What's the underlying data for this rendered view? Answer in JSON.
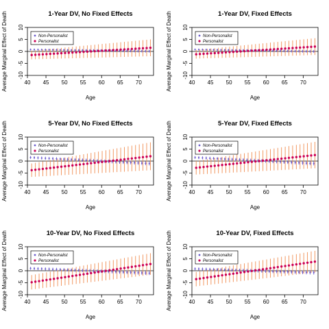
{
  "colors": {
    "non_personalist": "#6a5acd",
    "personalist": "#cc0055",
    "personalist_ci": "#f08c50",
    "zero_line": "#000000"
  },
  "chart_data": [
    {
      "type": "scatter",
      "title": "1-Year DV, No Fixed Effects",
      "xlabel": "Age",
      "ylabel": "Average Marginal Effect of Death",
      "xlim": [
        40,
        74
      ],
      "ylim": [
        -10,
        10
      ],
      "xticks": [
        40,
        45,
        50,
        55,
        60,
        65,
        70
      ],
      "yticks": [
        -10,
        -5,
        0,
        5,
        10
      ],
      "legend": "top-left",
      "x_start": 41,
      "x_end": 73,
      "series": [
        {
          "name": "Non-Personalist",
          "start": 0.8,
          "end": 0.1,
          "ci_start": 0.4,
          "ci_end": 0.6
        },
        {
          "name": "Personalist",
          "start": -1.5,
          "end": 1.5,
          "ci_start": 1.8,
          "ci_end": 3.5
        }
      ]
    },
    {
      "type": "scatter",
      "title": "1-Year DV, Fixed Effects",
      "xlabel": "Age",
      "ylabel": "Average Marginal Effect of Death",
      "xlim": [
        40,
        74
      ],
      "ylim": [
        -10,
        10
      ],
      "xticks": [
        40,
        45,
        50,
        55,
        60,
        65,
        70
      ],
      "yticks": [
        -10,
        -5,
        0,
        5,
        10
      ],
      "legend": "top-left",
      "x_start": 41,
      "x_end": 73,
      "series": [
        {
          "name": "Non-Personalist",
          "start": 0.8,
          "end": 0.0,
          "ci_start": 0.4,
          "ci_end": 0.6
        },
        {
          "name": "Personalist",
          "start": -1.2,
          "end": 2.0,
          "ci_start": 1.8,
          "ci_end": 3.5
        }
      ]
    },
    {
      "type": "scatter",
      "title": "5-Year DV, No Fixed Effects",
      "xlabel": "Age",
      "ylabel": "Average Marginal Effect of Death",
      "xlim": [
        40,
        74
      ],
      "ylim": [
        -10,
        10
      ],
      "xticks": [
        40,
        45,
        50,
        55,
        60,
        65,
        70
      ],
      "yticks": [
        -10,
        -5,
        0,
        5,
        10
      ],
      "legend": "top-left",
      "x_start": 41,
      "x_end": 73,
      "series": [
        {
          "name": "Non-Personalist",
          "start": 1.5,
          "end": -1.0,
          "ci_start": 0.6,
          "ci_end": 0.8
        },
        {
          "name": "Personalist",
          "start": -3.8,
          "end": 2.0,
          "ci_start": 2.8,
          "ci_end": 5.8
        }
      ]
    },
    {
      "type": "scatter",
      "title": "5-Year DV, Fixed Effects",
      "xlabel": "Age",
      "ylabel": "Average Marginal Effect of Death",
      "xlim": [
        40,
        74
      ],
      "ylim": [
        -10,
        10
      ],
      "xticks": [
        40,
        45,
        50,
        55,
        60,
        65,
        70
      ],
      "yticks": [
        -10,
        -5,
        0,
        5,
        10
      ],
      "legend": "top-left",
      "x_start": 41,
      "x_end": 73,
      "series": [
        {
          "name": "Non-Personalist",
          "start": 1.5,
          "end": -1.0,
          "ci_start": 0.6,
          "ci_end": 0.8
        },
        {
          "name": "Personalist",
          "start": -2.8,
          "end": 2.5,
          "ci_start": 2.8,
          "ci_end": 5.5
        }
      ]
    },
    {
      "type": "scatter",
      "title": "10-Year DV, No Fixed Effects",
      "xlabel": "Age",
      "ylabel": "Average Marginal Effect of Death",
      "xlim": [
        40,
        74
      ],
      "ylim": [
        -10,
        10
      ],
      "xticks": [
        40,
        45,
        50,
        55,
        60,
        65,
        70
      ],
      "yticks": [
        -10,
        -5,
        0,
        5,
        10
      ],
      "legend": "top-left",
      "x_start": 41,
      "x_end": 73,
      "series": [
        {
          "name": "Non-Personalist",
          "start": 1.0,
          "end": -1.0,
          "ci_start": 0.6,
          "ci_end": 0.8
        },
        {
          "name": "Personalist",
          "start": -4.8,
          "end": 2.8,
          "ci_start": 3.0,
          "ci_end": 4.5
        }
      ]
    },
    {
      "type": "scatter",
      "title": "10-Year DV, Fixed Effects",
      "xlabel": "Age",
      "ylabel": "Average Marginal Effect of Death",
      "xlim": [
        40,
        74
      ],
      "ylim": [
        -10,
        10
      ],
      "xticks": [
        40,
        45,
        50,
        55,
        60,
        65,
        70
      ],
      "yticks": [
        -10,
        -5,
        0,
        5,
        10
      ],
      "legend": "top-left",
      "x_start": 41,
      "x_end": 73,
      "series": [
        {
          "name": "Non-Personalist",
          "start": 0.8,
          "end": -0.8,
          "ci_start": 0.6,
          "ci_end": 0.8
        },
        {
          "name": "Personalist",
          "start": -3.5,
          "end": 3.8,
          "ci_start": 3.0,
          "ci_end": 4.5
        }
      ]
    }
  ]
}
